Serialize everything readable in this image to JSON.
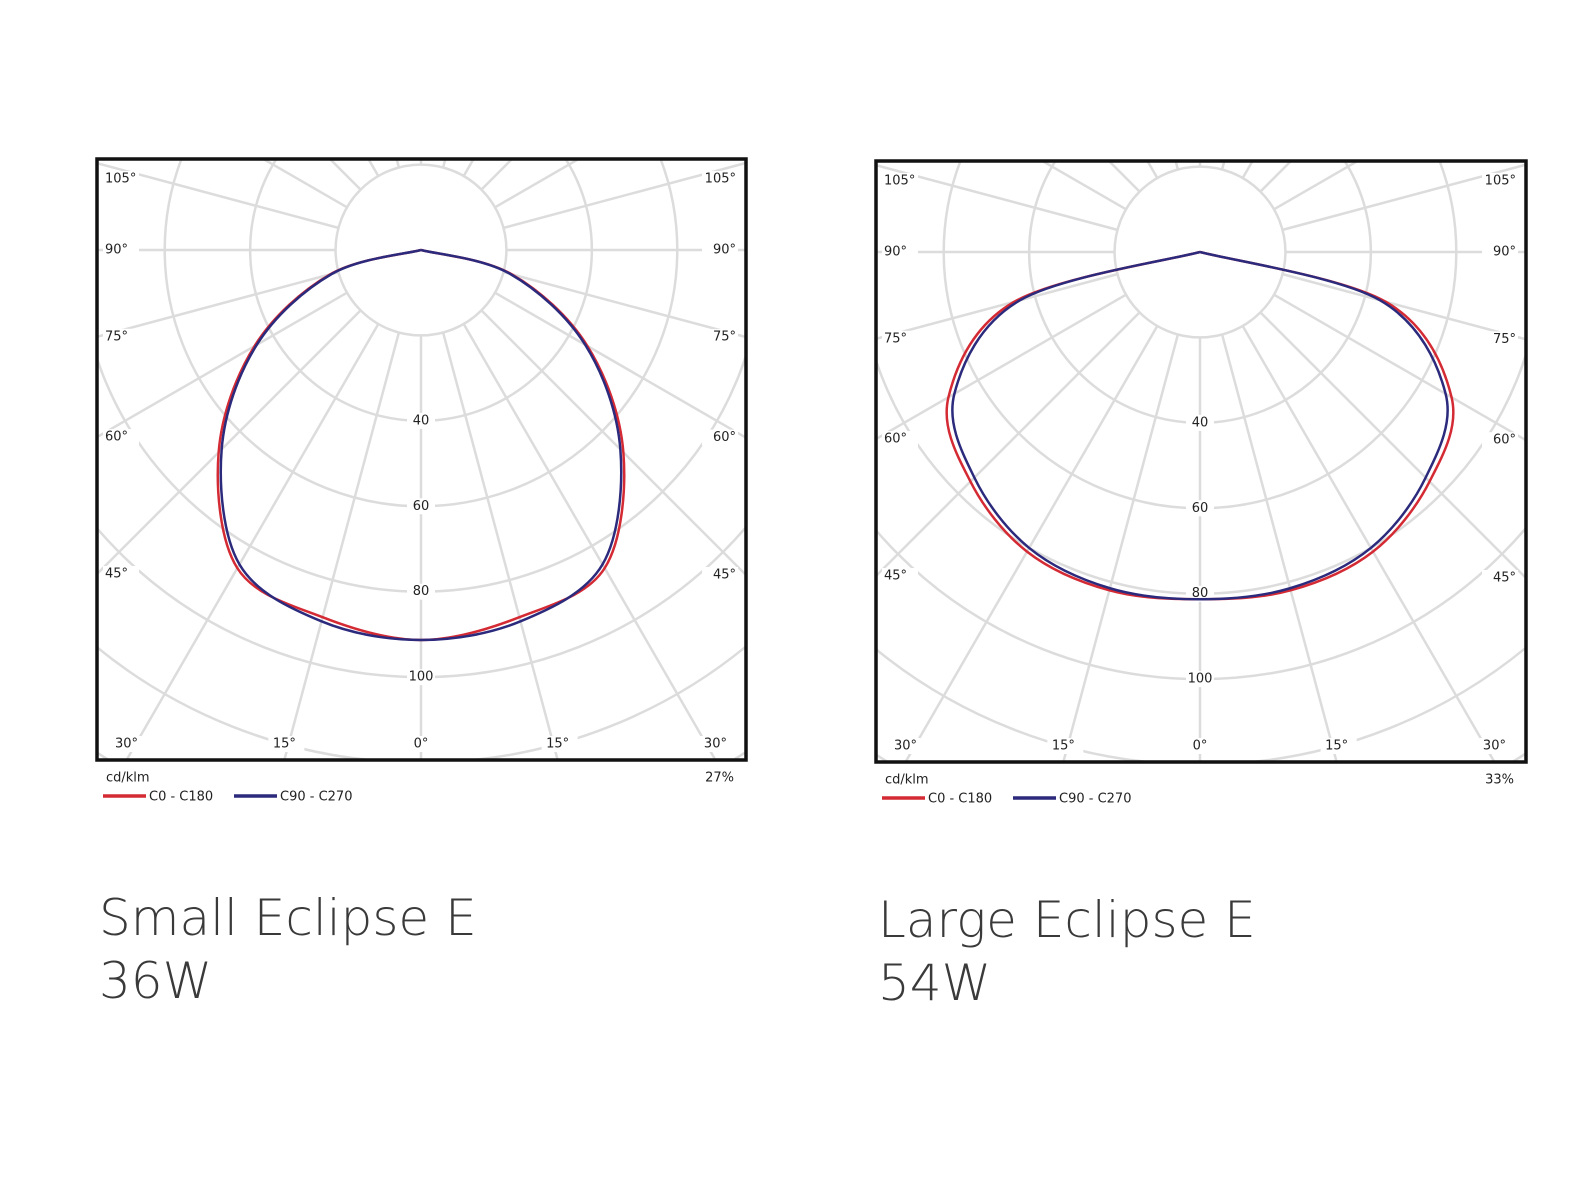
{
  "chart_data": [
    {
      "type": "polar",
      "title": "Small Eclipse E",
      "subtitle": "36W",
      "r_label": "cd/klm",
      "annotation": "27%",
      "angles": [
        -90,
        -75,
        -60,
        -45,
        -30,
        -15,
        0,
        15,
        30,
        45,
        60,
        75,
        90
      ],
      "series": [
        {
          "name": "C0 - C180",
          "color": "#d42a34",
          "values": [
            0,
            22,
            45,
            67,
            86,
            89,
            91.3,
            89,
            86,
            67,
            45,
            22,
            0
          ]
        },
        {
          "name": "C90 - C270",
          "color": "#2b2a7c",
          "values": [
            0,
            21.6,
            44.4,
            66,
            85,
            90,
            91.3,
            90,
            85,
            66,
            44.4,
            21.6,
            0
          ]
        }
      ],
      "rlim": [
        0,
        140
      ],
      "rgrid": [
        20,
        40,
        60,
        80,
        100,
        120,
        140
      ],
      "rticks": [
        40,
        60,
        80,
        100
      ],
      "thetagrid": [
        -165,
        -150,
        -135,
        -120,
        -105,
        -90,
        -75,
        -60,
        -45,
        -30,
        -15,
        0,
        15,
        30,
        45,
        60,
        75,
        90,
        105,
        120,
        135,
        150,
        165,
        180
      ],
      "thetaticks": [
        {
          "value": -105,
          "label": "105°"
        },
        {
          "value": -90,
          "label": "90°"
        },
        {
          "value": -75,
          "label": "75°"
        },
        {
          "value": -60,
          "label": "60°"
        },
        {
          "value": -45,
          "label": "45°"
        },
        {
          "value": -30,
          "label": "30°"
        },
        {
          "value": -15,
          "label": "15°"
        },
        {
          "value": 0,
          "label": "0°"
        },
        {
          "value": 15,
          "label": "15°"
        },
        {
          "value": 30,
          "label": "30°"
        },
        {
          "value": 45,
          "label": "45°"
        },
        {
          "value": 60,
          "label": "60°"
        },
        {
          "value": 75,
          "label": "75°"
        },
        {
          "value": 90,
          "label": "90°"
        },
        {
          "value": 105,
          "label": "105°"
        }
      ]
    },
    {
      "type": "polar",
      "title": "Large Eclipse E",
      "subtitle": "54W",
      "r_label": "cd/klm",
      "annotation": "33%",
      "angles": [
        -90,
        -75,
        -60,
        -45,
        -30,
        -15,
        0,
        15,
        30,
        45,
        60,
        75,
        90
      ],
      "series": [
        {
          "name": "C0 - C180",
          "color": "#d42a34",
          "values": [
            0,
            45,
            68,
            76,
            81,
            82,
            81.3,
            82,
            81,
            76,
            68,
            45,
            0
          ]
        },
        {
          "name": "C90 - C270",
          "color": "#2b2a7c",
          "values": [
            0,
            43.6,
            66.4,
            74.7,
            80,
            81.5,
            81.3,
            81.5,
            80,
            74.7,
            66.4,
            43.6,
            0
          ]
        }
      ],
      "rlim": [
        0,
        140
      ],
      "rgrid": [
        20,
        40,
        60,
        80,
        100,
        120,
        140
      ],
      "rticks": [
        40,
        60,
        80,
        100
      ],
      "thetagrid": [
        -165,
        -150,
        -135,
        -120,
        -105,
        -90,
        -75,
        -60,
        -45,
        -30,
        -15,
        0,
        15,
        30,
        45,
        60,
        75,
        90,
        105,
        120,
        135,
        150,
        165,
        180
      ],
      "thetaticks": [
        {
          "value": -105,
          "label": "105°"
        },
        {
          "value": -90,
          "label": "90°"
        },
        {
          "value": -75,
          "label": "75°"
        },
        {
          "value": -60,
          "label": "60°"
        },
        {
          "value": -45,
          "label": "45°"
        },
        {
          "value": -30,
          "label": "30°"
        },
        {
          "value": -15,
          "label": "15°"
        },
        {
          "value": 0,
          "label": "0°"
        },
        {
          "value": 15,
          "label": "15°"
        },
        {
          "value": 30,
          "label": "30°"
        },
        {
          "value": 45,
          "label": "45°"
        },
        {
          "value": 60,
          "label": "60°"
        },
        {
          "value": 75,
          "label": "75°"
        },
        {
          "value": 90,
          "label": "90°"
        },
        {
          "value": 105,
          "label": "105°"
        }
      ]
    }
  ]
}
